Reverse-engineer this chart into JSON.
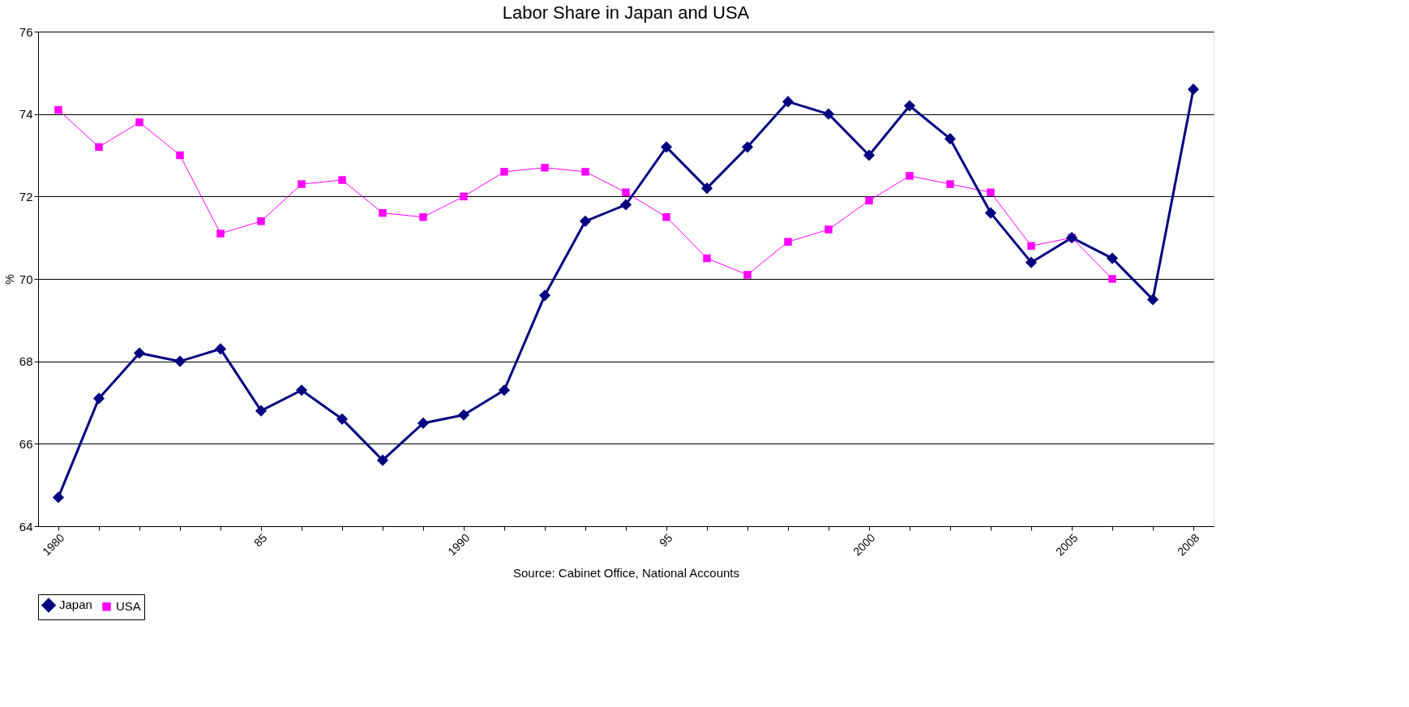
{
  "chart_data": {
    "type": "line",
    "title": "Labor Share in Japan and USA",
    "ylabel": "%",
    "annotations": [
      "Source: Cabinet Office, National Accounts"
    ],
    "categories": [
      "1980",
      null,
      null,
      null,
      null,
      "85",
      null,
      null,
      null,
      null,
      "1990",
      null,
      null,
      null,
      null,
      "95",
      null,
      null,
      null,
      null,
      "2000",
      null,
      null,
      null,
      null,
      "2005",
      null,
      null,
      "2008"
    ],
    "series": [
      {
        "name": "Japan",
        "color": "#000080",
        "marker": "diamond",
        "values": [
          64.7,
          67.1,
          68.2,
          68.0,
          68.3,
          66.8,
          67.3,
          66.6,
          65.6,
          66.5,
          66.7,
          67.3,
          69.6,
          71.4,
          71.8,
          73.2,
          72.2,
          73.2,
          74.3,
          74.0,
          73.0,
          74.2,
          73.4,
          71.6,
          70.4,
          71.0,
          70.5,
          69.5,
          74.6
        ]
      },
      {
        "name": "USA",
        "color": "#ff00ff",
        "marker": "square",
        "values": [
          74.1,
          73.2,
          73.8,
          73.0,
          71.1,
          71.4,
          72.3,
          72.4,
          71.6,
          71.5,
          72.0,
          72.6,
          72.7,
          72.6,
          72.1,
          71.5,
          70.5,
          70.1,
          70.9,
          71.2,
          71.9,
          72.5,
          72.3,
          72.1,
          70.8,
          71.0,
          70.0,
          null,
          null
        ]
      }
    ],
    "ylim": [
      64,
      76
    ],
    "yticks": [
      64,
      66,
      68,
      70,
      72,
      74,
      76
    ],
    "grid": "y",
    "legend": "bottom"
  }
}
